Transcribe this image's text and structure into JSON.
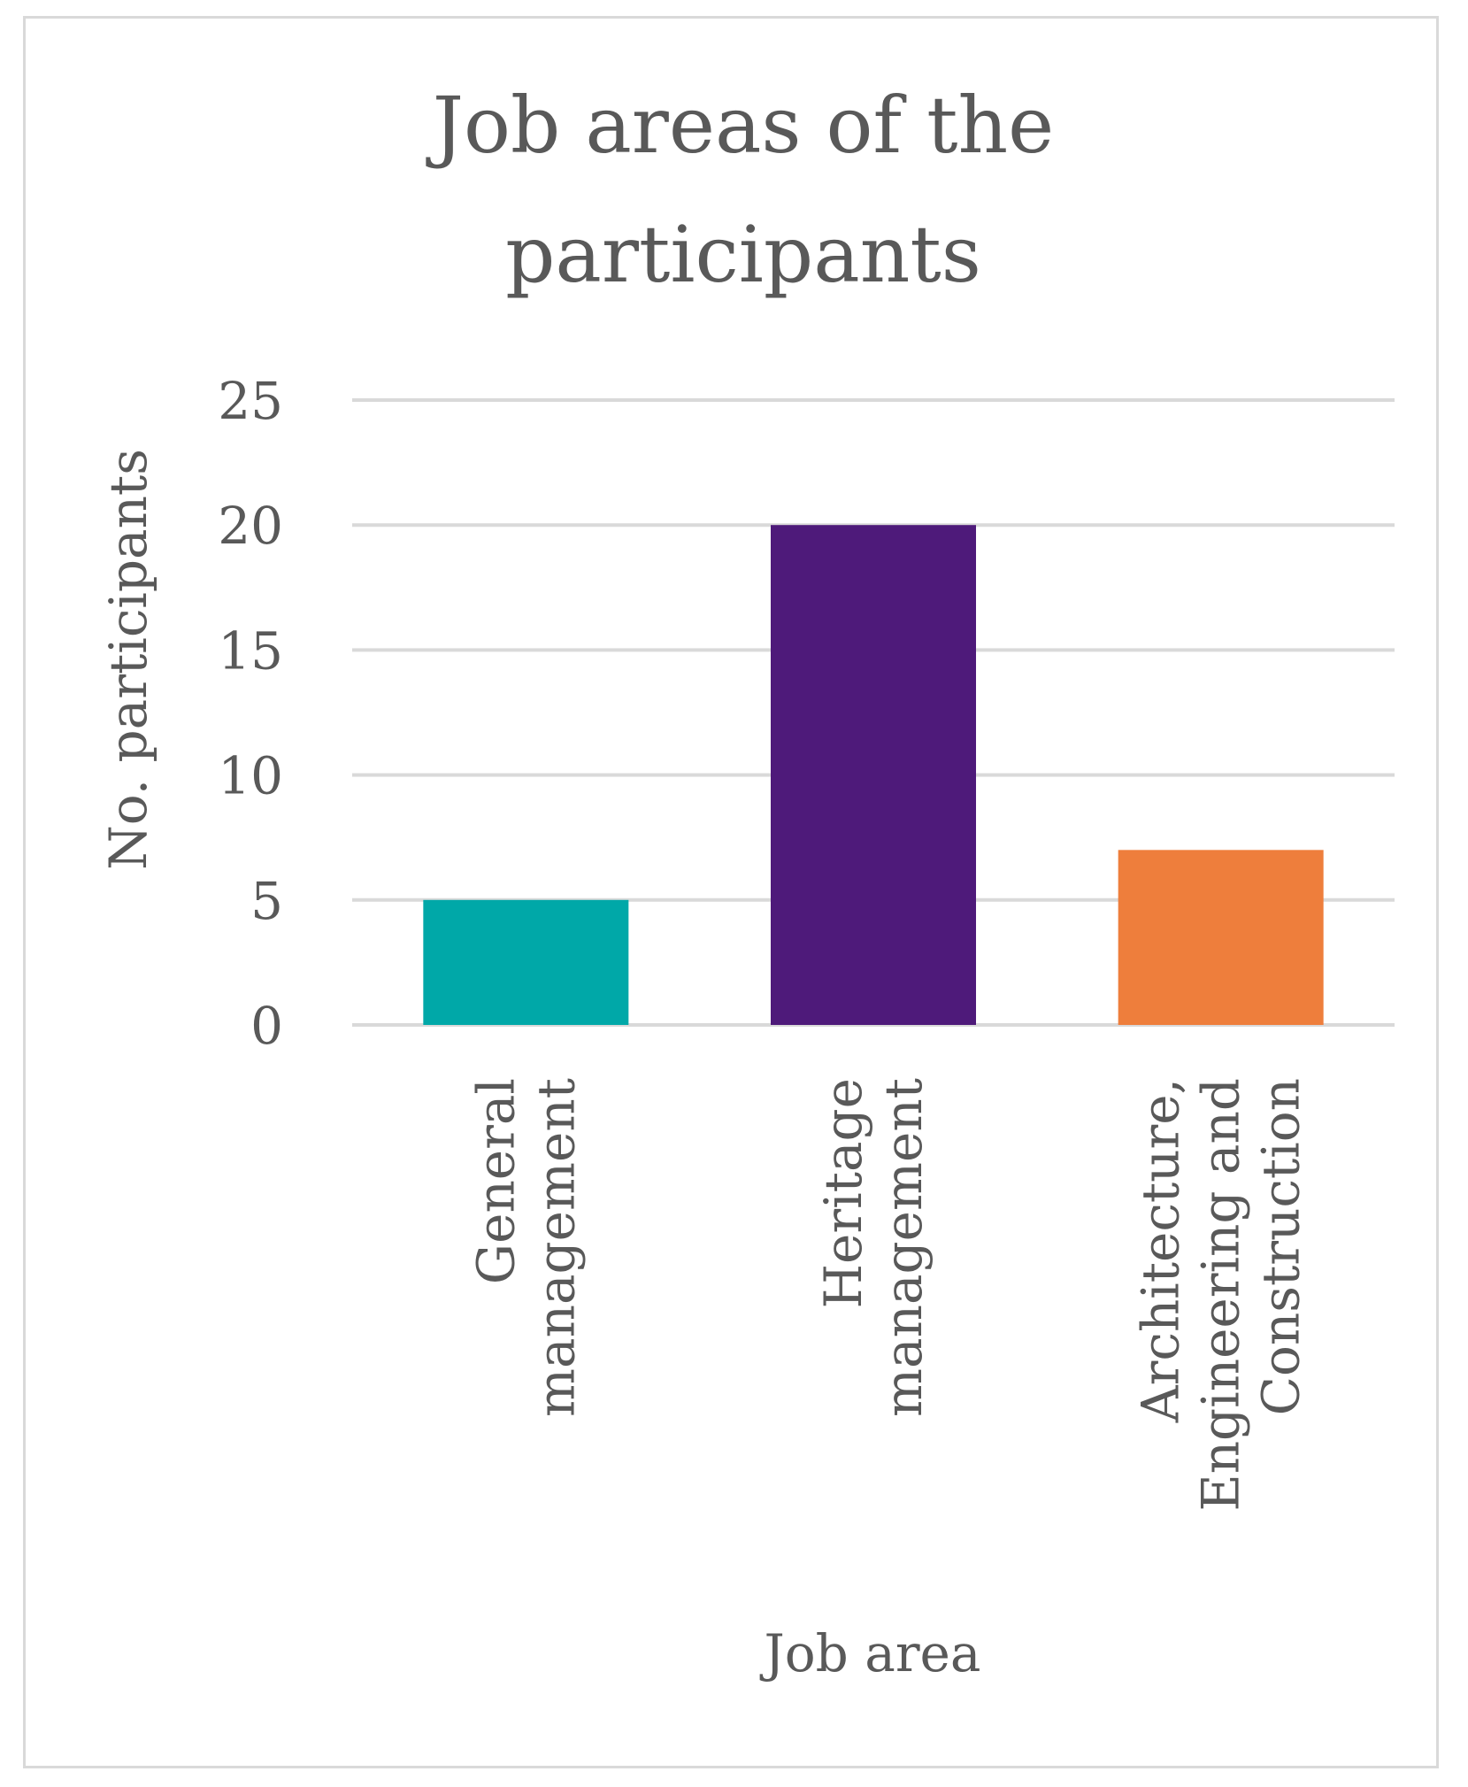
{
  "chart_data": {
    "type": "bar",
    "title_lines": [
      "Job areas of the",
      "participants"
    ],
    "xlabel": "Job area",
    "ylabel": "No. participants",
    "ylim": [
      0,
      25
    ],
    "yticks": [
      "0",
      "5",
      "10",
      "15",
      "20",
      "25"
    ],
    "grid": true,
    "categories": [
      {
        "lines": [
          "General",
          "management"
        ]
      },
      {
        "lines": [
          "Heritage",
          "management"
        ]
      },
      {
        "lines": [
          "Architecture,",
          "Engineering and",
          "Construction"
        ]
      }
    ],
    "values": [
      5,
      20,
      7
    ],
    "colors": [
      "#00a8a8",
      "#4e1a7a",
      "#ee7e3c"
    ],
    "gridline_color": "#d9d9d9"
  }
}
